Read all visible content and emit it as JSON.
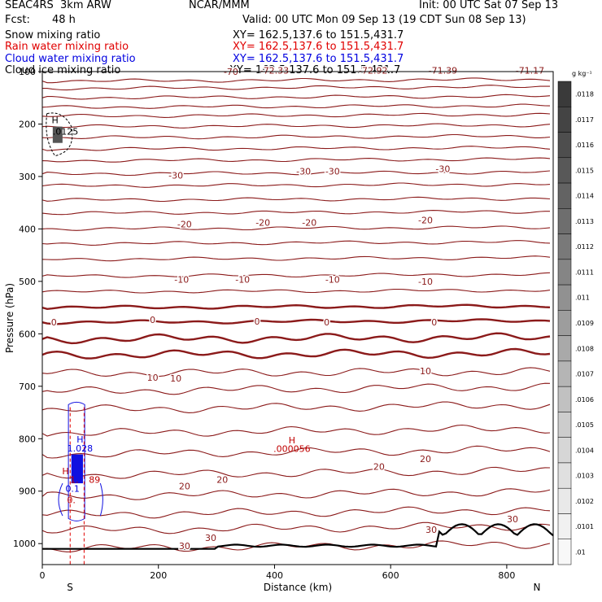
{
  "header": {
    "model": "SEAC4RS  3km ARW",
    "center": "NCAR/MMM",
    "init": "Init: 00 UTC Sat 07 Sep 13",
    "fcst_label": "Fcst:",
    "fcst_value": "48 h",
    "valid": "Valid: 00 UTC Mon 09 Sep 13 (19 CDT Sun 08 Sep 13)",
    "fields": [
      {
        "name": "Snow mixing ratio",
        "color": "#000000"
      },
      {
        "name": "Rain water mixing ratio",
        "color": "#e00000"
      },
      {
        "name": "Cloud water mixing ratio",
        "color": "#0000e0"
      },
      {
        "name": "Cloud ice mixing ratio",
        "color": "#000000"
      }
    ],
    "xy": "XY= 162.5,137.6 to 151.5,431.7"
  },
  "colorbar": {
    "unit": "g kg⁻¹",
    "labels": [
      ".0118",
      ".0117",
      ".0116",
      ".0115",
      ".0114",
      ".0113",
      ".0112",
      ".0111",
      ".011",
      ".0109",
      ".0108",
      ".0107",
      ".0106",
      ".0105",
      ".0104",
      ".0103",
      ".0102",
      ".0101",
      ".01"
    ],
    "colors": [
      "#3a3a3a",
      "#444444",
      "#4e4e4e",
      "#585858",
      "#636363",
      "#6e6e6e",
      "#797979",
      "#858585",
      "#919191",
      "#9d9d9d",
      "#a9a9a9",
      "#b5b5b5",
      "#c1c1c1",
      "#cccccc",
      "#d6d6d6",
      "#e0e0e0",
      "#e9e9e9",
      "#f1f1f1",
      "#f8f8f8"
    ]
  },
  "chart_data": {
    "type": "contour cross-section",
    "xlabel": "Distance (km)",
    "ylabel": "Pressure (hPa)",
    "xlim": [
      0,
      880
    ],
    "ylim": [
      1040,
      100
    ],
    "x_ticks": [
      0,
      200,
      400,
      600,
      800
    ],
    "y_ticks": [
      100,
      200,
      300,
      400,
      500,
      600,
      700,
      800,
      900,
      1000
    ],
    "x_end_labels": {
      "left": "S",
      "right": "N"
    },
    "temperature_contour_color": "#8b1a1a",
    "temperature_contours": [
      {
        "level": 30,
        "p": 1010
      },
      {
        "level": 30,
        "p": 975
      },
      {
        "level": 20,
        "p": 945
      },
      {
        "level": 20,
        "p": 910
      },
      {
        "level": 20,
        "p": 870
      },
      {
        "level": 10,
        "p": 830
      },
      {
        "level": 10,
        "p": 790
      },
      {
        "level": 10,
        "p": 745
      },
      {
        "level": 10,
        "p": 710
      },
      {
        "level": 10,
        "p": 675
      },
      {
        "level": 0,
        "p": 640
      },
      {
        "level": 0,
        "p": 610
      },
      {
        "level": 0,
        "p": 578
      },
      {
        "level": 0,
        "p": 550
      },
      {
        "level": -10,
        "p": 520
      },
      {
        "level": -10,
        "p": 490
      },
      {
        "level": -10,
        "p": 458
      },
      {
        "level": -20,
        "p": 428
      },
      {
        "level": -20,
        "p": 400
      },
      {
        "level": -20,
        "p": 370
      },
      {
        "level": -30,
        "p": 345
      },
      {
        "level": -30,
        "p": 318
      },
      {
        "level": -30,
        "p": 295
      },
      {
        "level": -30,
        "p": 270
      },
      {
        "level": -40,
        "p": 248
      },
      {
        "level": -40,
        "p": 226
      },
      {
        "level": -50,
        "p": 205
      },
      {
        "level": -50,
        "p": 185
      },
      {
        "level": -60,
        "p": 168
      },
      {
        "level": -60,
        "p": 150
      },
      {
        "level": -70,
        "p": 132
      },
      {
        "level": -70,
        "p": 118
      }
    ],
    "temperature_labels": [
      {
        "text": "-70",
        "x": 325,
        "p": 100
      },
      {
        "text": "-72.33",
        "x": 400,
        "p": 98
      },
      {
        "text": "-72.92",
        "x": 570,
        "p": 98
      },
      {
        "text": "-71.39",
        "x": 690,
        "p": 98
      },
      {
        "text": "-71.17",
        "x": 840,
        "p": 98
      },
      {
        "text": "-30",
        "x": 230,
        "p": 298
      },
      {
        "text": "-30",
        "x": 450,
        "p": 290
      },
      {
        "text": "-30",
        "x": 500,
        "p": 290
      },
      {
        "text": "-30",
        "x": 690,
        "p": 285
      },
      {
        "text": "-20",
        "x": 245,
        "p": 391
      },
      {
        "text": "-20",
        "x": 380,
        "p": 388
      },
      {
        "text": "-20",
        "x": 460,
        "p": 388
      },
      {
        "text": "-20",
        "x": 660,
        "p": 383
      },
      {
        "text": "-10",
        "x": 240,
        "p": 496
      },
      {
        "text": "-10",
        "x": 345,
        "p": 496
      },
      {
        "text": "-10",
        "x": 500,
        "p": 496
      },
      {
        "text": "-10",
        "x": 660,
        "p": 500
      },
      {
        "text": "0",
        "x": 20,
        "p": 578
      },
      {
        "text": "0",
        "x": 190,
        "p": 573
      },
      {
        "text": "0",
        "x": 370,
        "p": 576
      },
      {
        "text": "0",
        "x": 490,
        "p": 578
      },
      {
        "text": "0",
        "x": 675,
        "p": 578
      },
      {
        "text": "10",
        "x": 190,
        "p": 683
      },
      {
        "text": "10",
        "x": 230,
        "p": 685
      },
      {
        "text": "10",
        "x": 660,
        "p": 671
      },
      {
        "text": "20",
        "x": 245,
        "p": 890
      },
      {
        "text": "20",
        "x": 310,
        "p": 878
      },
      {
        "text": "20",
        "x": 580,
        "p": 853
      },
      {
        "text": "20",
        "x": 660,
        "p": 838
      },
      {
        "text": "30",
        "x": 245,
        "p": 1004
      },
      {
        "text": "30",
        "x": 290,
        "p": 989
      },
      {
        "text": "30",
        "x": 670,
        "p": 973
      },
      {
        "text": "30",
        "x": 810,
        "p": 953
      }
    ],
    "annotations": [
      {
        "text": "H",
        "color": "#000000",
        "x": 22,
        "p": 192
      },
      {
        "text": ".0125",
        "color": "#000000",
        "x": 40,
        "p": 214
      },
      {
        "text": "H",
        "color": "#c00000",
        "x": 430,
        "p": 803
      },
      {
        "text": ".000056",
        "color": "#c00000",
        "x": 430,
        "p": 819
      },
      {
        "text": "H",
        "color": "#0000e0",
        "x": 65,
        "p": 801
      },
      {
        "text": "1.028",
        "color": "#0000e0",
        "x": 65,
        "p": 818
      },
      {
        "text": "H",
        "color": "#c00000",
        "x": 40,
        "p": 862
      },
      {
        "text": "1.",
        "color": "#c00000",
        "x": 55,
        "p": 878
      },
      {
        "text": "89",
        "color": "#c00000",
        "x": 90,
        "p": 878
      },
      {
        "text": "0.1",
        "color": "#0000e0",
        "x": 52,
        "p": 895
      },
      {
        "text": "0.",
        "color": "#c00000",
        "x": 50,
        "p": 917
      }
    ]
  }
}
